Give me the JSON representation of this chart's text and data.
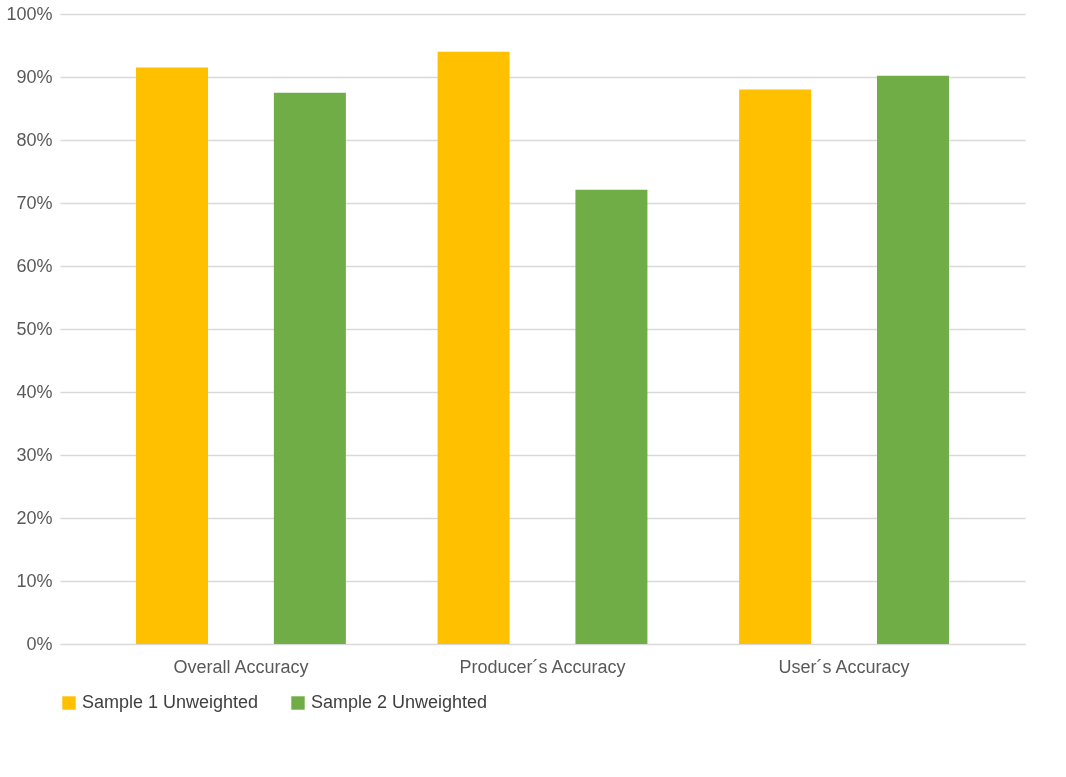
{
  "chart_data": {
    "type": "bar",
    "categories": [
      "Overall Accuracy",
      "Producer´s Accuracy",
      "User´s Accuracy"
    ],
    "series": [
      {
        "name": "Sample 1 Unweighted",
        "color": "#ffc000",
        "values": [
          91.5,
          94.0,
          88.0
        ]
      },
      {
        "name": "Sample 2 Unweighted",
        "color": "#70ad47",
        "values": [
          87.5,
          72.1,
          90.2
        ]
      }
    ],
    "ylim": [
      0,
      100
    ],
    "yticks": [
      {
        "value": 0,
        "label": "0%"
      },
      {
        "value": 10,
        "label": "10%"
      },
      {
        "value": 20,
        "label": "20%"
      },
      {
        "value": 30,
        "label": "30%"
      },
      {
        "value": 40,
        "label": "40%"
      },
      {
        "value": 50,
        "label": "50%"
      },
      {
        "value": 60,
        "label": "60%"
      },
      {
        "value": 70,
        "label": "70%"
      },
      {
        "value": 80,
        "label": "80%"
      },
      {
        "value": 90,
        "label": "90%"
      },
      {
        "value": 100,
        "label": "100%"
      }
    ],
    "grid": "y",
    "legend": "bottom"
  }
}
